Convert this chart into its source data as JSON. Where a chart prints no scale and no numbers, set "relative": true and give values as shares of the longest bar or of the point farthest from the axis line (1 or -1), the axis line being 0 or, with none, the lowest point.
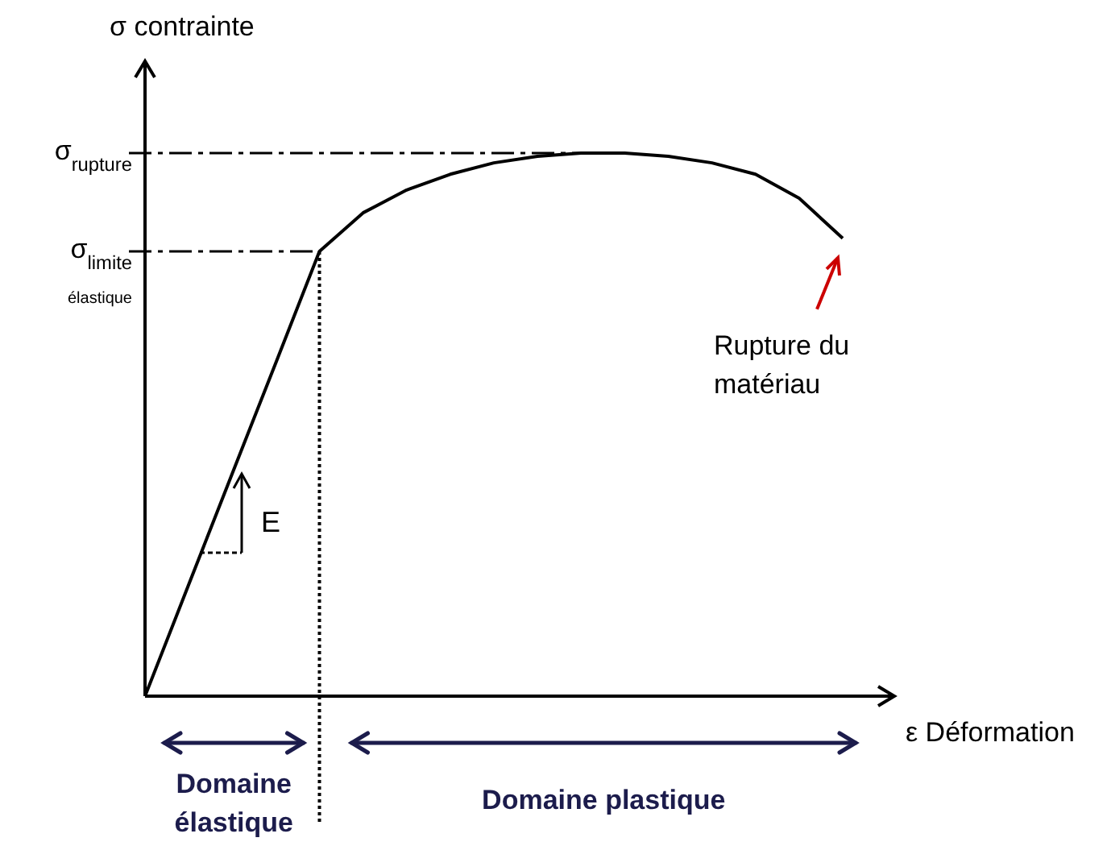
{
  "chart_data": {
    "type": "line",
    "relative": true,
    "xlabel": "ε  Déformation",
    "ylabel": "σ  contrainte",
    "categories": [
      null,
      null,
      null,
      null,
      null,
      null,
      null,
      null,
      null,
      null,
      null,
      null,
      null,
      null,
      null,
      null,
      null
    ],
    "series": [
      {
        "color": "#000000",
        "values": [
          0,
          0.205,
          0.41,
          0.614,
          0.819,
          0.89,
          0.932,
          0.961,
          0.982,
          0.994,
          1,
          1,
          0.994,
          0.982,
          0.961,
          0.917,
          0.843
        ]
      }
    ],
    "ref_lines": [
      {
        "axis": "y",
        "value": 1,
        "label": "σ$_{rupture}$",
        "line_style": "dashed"
      },
      {
        "axis": "y",
        "value": 0.819,
        "label": "σ$_{limite}$\nélastique",
        "line_style": "dashed"
      }
    ],
    "annotations": [
      "E",
      "Rupture du matériau",
      "Domaine élastique",
      "Domaine plastique"
    ],
    "marker": "none",
    "line_style": "solid"
  }
}
